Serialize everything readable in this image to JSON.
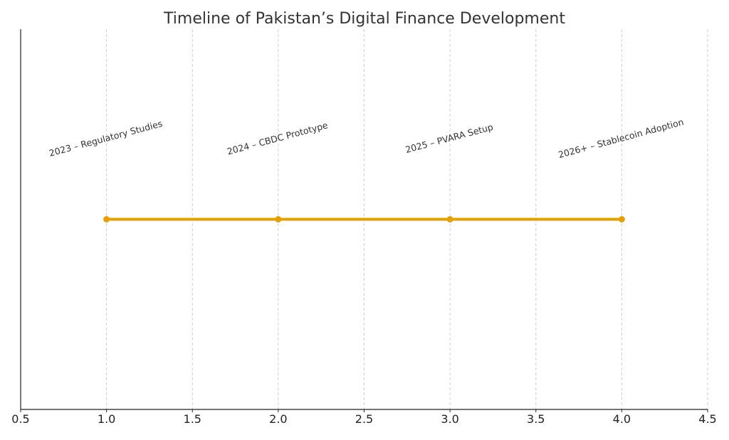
{
  "chart_data": {
    "type": "line",
    "title": "Timeline of Pakistan’s Digital Finance Development",
    "xlabel": "",
    "ylabel": "",
    "xlim": [
      0.5,
      4.5
    ],
    "ylim": [
      0,
      1
    ],
    "x_ticks": [
      0.5,
      1.0,
      1.5,
      2.0,
      2.5,
      3.0,
      3.5,
      4.0,
      4.5
    ],
    "x_tick_labels": [
      "0.5",
      "1.0",
      "1.5",
      "2.0",
      "2.5",
      "3.0",
      "3.5",
      "4.0",
      "4.5"
    ],
    "grid": "vertical-dashed",
    "series": [
      {
        "x": [
          1,
          2,
          3,
          4
        ],
        "y": [
          0.5,
          0.5,
          0.5,
          0.5
        ],
        "color": "#E69F00"
      }
    ],
    "annotations": [
      {
        "x": 1,
        "text": "2023 – Regulatory Studies"
      },
      {
        "x": 2,
        "text": "2024 – CBDC Prototype"
      },
      {
        "x": 3,
        "text": "2025 – PVARA Setup"
      },
      {
        "x": 4,
        "text": "2026+ – Stablecoin Adoption"
      }
    ]
  }
}
